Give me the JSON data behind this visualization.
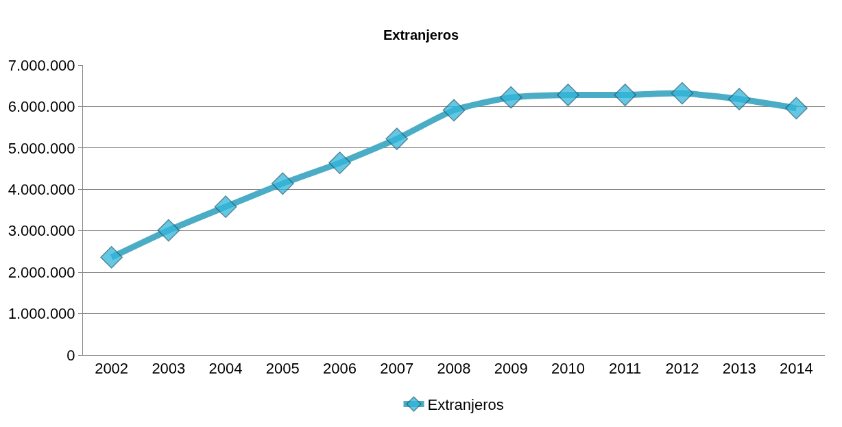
{
  "chart_data": {
    "type": "line",
    "title": "Extranjeros",
    "categories": [
      "2002",
      "2003",
      "2004",
      "2005",
      "2006",
      "2007",
      "2008",
      "2009",
      "2010",
      "2011",
      "2012",
      "2013",
      "2014"
    ],
    "series": [
      {
        "name": "Extranjeros",
        "color": "#4bacc6",
        "values": [
          2360000,
          3010000,
          3580000,
          4140000,
          4640000,
          5220000,
          5910000,
          6220000,
          6280000,
          6280000,
          6320000,
          6180000,
          5960000
        ]
      }
    ],
    "ylim": [
      0,
      7000000
    ],
    "yticks": [
      0,
      {
        "value": 1000000,
        "label": "1.000.000"
      },
      {
        "value": 2000000,
        "label": "2.000.000"
      },
      {
        "value": 3000000,
        "label": "3.000.000"
      },
      {
        "value": 4000000,
        "label": "4.000.000"
      },
      {
        "value": 5000000,
        "label": "5.000.000"
      },
      {
        "value": 6000000,
        "label": "6.000.000"
      },
      {
        "value": 7000000,
        "label": "7.000.000"
      }
    ],
    "grid": "y",
    "legend": "bottom",
    "marker": "diamond",
    "line_style": "solid"
  }
}
